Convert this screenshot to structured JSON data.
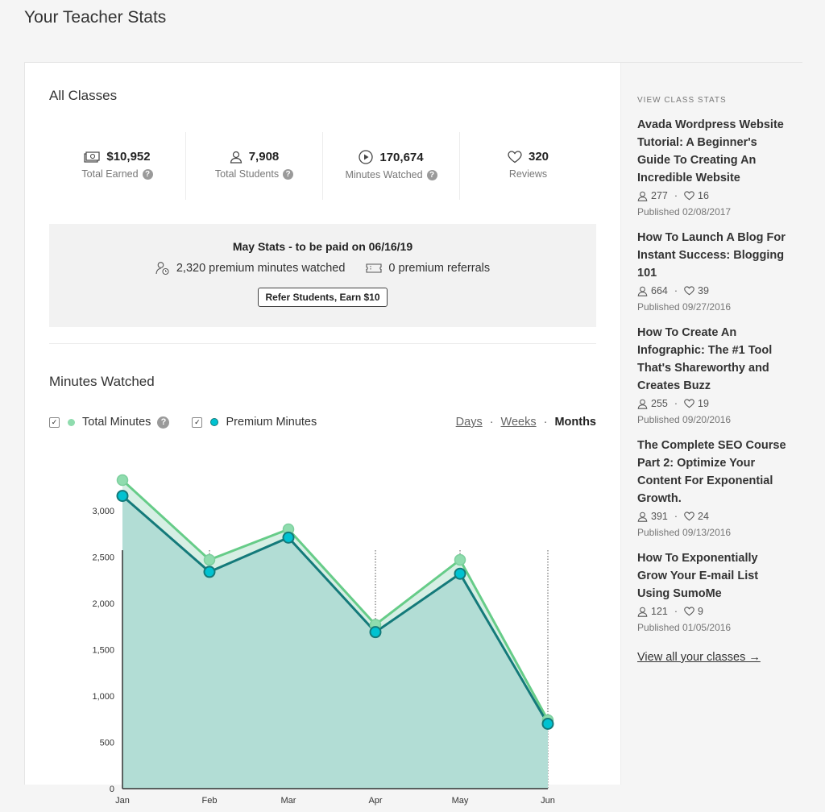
{
  "page_title": "Your Teacher Stats",
  "all_classes": {
    "title": "All Classes",
    "stats": [
      {
        "value": "$10,952",
        "label": "Total Earned",
        "icon": "money-icon",
        "help": true
      },
      {
        "value": "7,908",
        "label": "Total Students",
        "icon": "user-icon",
        "help": true
      },
      {
        "value": "170,674",
        "label": "Minutes Watched",
        "icon": "play-icon",
        "help": true
      },
      {
        "value": "320",
        "label": "Reviews",
        "icon": "heart-icon",
        "help": false
      }
    ]
  },
  "may_stats": {
    "title": "May Stats - to be paid on 06/16/19",
    "premium_minutes": "2,320 premium minutes watched",
    "premium_referrals": "0 premium referrals",
    "refer_button": "Refer Students, Earn $10"
  },
  "minutes_watched": {
    "title": "Minutes Watched",
    "legend_total": "Total Minutes",
    "legend_premium": "Premium Minutes",
    "range_days": "Days",
    "range_weeks": "Weeks",
    "range_months": "Months",
    "sep": "·"
  },
  "colors": {
    "total": "#8fdcae",
    "premium": "#00c2d1",
    "area": "#b2ddd5",
    "premium_line": "#147a7a",
    "total_line": "#66cc88"
  },
  "chart_data": {
    "type": "area",
    "categories": [
      "Jan",
      "Feb",
      "Mar",
      "Apr",
      "May",
      "Jun"
    ],
    "series": [
      {
        "name": "Total Minutes",
        "values": [
          3330,
          2470,
          2800,
          1770,
          2470,
          740
        ]
      },
      {
        "name": "Premium Minutes",
        "values": [
          3160,
          2340,
          2710,
          1690,
          2320,
          700
        ]
      }
    ],
    "yticks": [
      "0",
      "500",
      "1,000",
      "1,500",
      "2,000",
      "2,500",
      "3,000"
    ],
    "ylim": [
      0,
      3400
    ],
    "title": "",
    "xlabel": "",
    "ylabel": ""
  },
  "sidebar": {
    "heading": "VIEW CLASS STATS",
    "classes": [
      {
        "title": "Avada Wordpress Website Tutorial: A Beginner's Guide To Creating An Incredible Website",
        "students": "277",
        "likes": "16",
        "published": "Published 02/08/2017"
      },
      {
        "title": "How To Launch A Blog For Instant Success: Blogging 101",
        "students": "664",
        "likes": "39",
        "published": "Published 09/27/2016"
      },
      {
        "title": "How To Create An Infographic: The #1 Tool That's Shareworthy and Creates Buzz",
        "students": "255",
        "likes": "19",
        "published": "Published 09/20/2016"
      },
      {
        "title": "The Complete SEO Course Part 2: Optimize Your Content For Exponential Growth.",
        "students": "391",
        "likes": "24",
        "published": "Published 09/13/2016"
      },
      {
        "title": "How To Exponentially Grow Your E-mail List Using SumoMe",
        "students": "121",
        "likes": "9",
        "published": "Published 01/05/2016"
      }
    ],
    "view_all": "View all your classes →",
    "meta_sep": "·"
  }
}
